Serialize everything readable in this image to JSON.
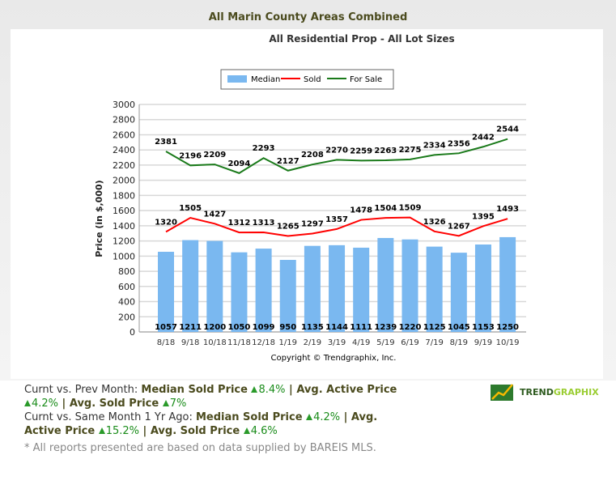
{
  "header": {
    "title": "All Marin County Areas Combined"
  },
  "chart_data": {
    "type": "bar+line",
    "title": "All Residential Prop - All Lot Sizes",
    "ylabel": "Price (in $,000)",
    "xlabel": "",
    "ylim": [
      0,
      3000
    ],
    "yticks": [
      0,
      200,
      400,
      600,
      800,
      1000,
      1200,
      1400,
      1600,
      1800,
      2000,
      2200,
      2400,
      2600,
      2800,
      3000
    ],
    "grid": true,
    "legend_placement": "top-center",
    "categories": [
      "8/18",
      "9/18",
      "10/18",
      "11/18",
      "12/18",
      "1/19",
      "2/19",
      "3/19",
      "4/19",
      "5/19",
      "6/19",
      "7/19",
      "8/19",
      "9/19",
      "10/19"
    ],
    "series": [
      {
        "name": "Median",
        "type": "bar",
        "color": "#7ab8f0",
        "values": [
          1057,
          1211,
          1200,
          1050,
          1099,
          950,
          1135,
          1144,
          1111,
          1239,
          1220,
          1125,
          1045,
          1153,
          1250
        ]
      },
      {
        "name": "Sold",
        "type": "line",
        "color": "#ff0000",
        "values": [
          1320,
          1505,
          1427,
          1312,
          1313,
          1265,
          1297,
          1357,
          1478,
          1504,
          1509,
          1326,
          1267,
          1395,
          1493
        ]
      },
      {
        "name": "For Sale",
        "type": "line",
        "color": "#1a7a1a",
        "values": [
          2381,
          2196,
          2209,
          2094,
          2293,
          2127,
          2208,
          2270,
          2259,
          2263,
          2275,
          2334,
          2356,
          2442,
          2544
        ]
      }
    ],
    "copyright": "Copyright © Trendgraphix, Inc."
  },
  "stats": {
    "line1_prefix": "Curnt vs. Prev Month: ",
    "line1_items": [
      {
        "label": "Median Sold Price",
        "value": "8.4%"
      },
      {
        "label": "Avg. Active Price",
        "value": "4.2%"
      },
      {
        "label": "Avg. Sold Price",
        "value": "7%"
      }
    ],
    "line2_prefix": "Curnt vs. Same Month 1 Yr Ago: ",
    "line2_items": [
      {
        "label": "Median Sold Price",
        "value": "4.2%"
      },
      {
        "label": "Avg. Active Price",
        "value": "15.2%"
      },
      {
        "label": "Avg. Sold Price",
        "value": "4.6%"
      }
    ],
    "separator": " | "
  },
  "note": "* All reports presented are based on data supplied by BAREIS MLS.",
  "logo": {
    "text_a": "TREND",
    "text_b": "GRAPHIX"
  }
}
